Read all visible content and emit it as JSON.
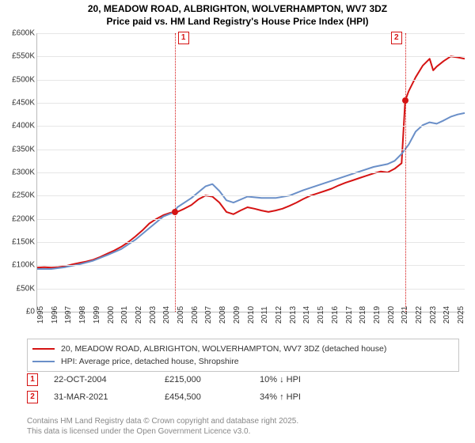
{
  "title_line1": "20, MEADOW ROAD, ALBRIGHTON, WOLVERHAMPTON, WV7 3DZ",
  "title_line2": "Price paid vs. HM Land Registry's House Price Index (HPI)",
  "chart": {
    "type": "line",
    "background_color": "#ffffff",
    "grid_color": "#e6e6e6",
    "axis_color": "#bbbbbb",
    "label_fontsize": 10,
    "x_years": [
      1995,
      1996,
      1997,
      1998,
      1999,
      2000,
      2001,
      2002,
      2003,
      2004,
      2005,
      2006,
      2007,
      2008,
      2009,
      2010,
      2011,
      2012,
      2013,
      2014,
      2015,
      2016,
      2017,
      2018,
      2019,
      2020,
      2021,
      2022,
      2023,
      2024,
      2025
    ],
    "xlim": [
      1995,
      2025.5
    ],
    "ylim": [
      0,
      600000
    ],
    "ytick_step": 50000,
    "ytick_labels": [
      "£0",
      "£50K",
      "£100K",
      "£150K",
      "£200K",
      "£250K",
      "£300K",
      "£350K",
      "£400K",
      "£450K",
      "£500K",
      "£550K",
      "£600K"
    ],
    "series": [
      {
        "name": "property",
        "color": "#d51313",
        "width": 2,
        "legend": "20, MEADOW ROAD, ALBRIGHTON, WOLVERHAMPTON, WV7 3DZ (detached house)",
        "points": [
          [
            1995,
            95000
          ],
          [
            1995.5,
            96000
          ],
          [
            1996,
            95000
          ],
          [
            1996.5,
            96000
          ],
          [
            1997,
            98000
          ],
          [
            1997.5,
            102000
          ],
          [
            1998,
            105000
          ],
          [
            1998.5,
            108000
          ],
          [
            1999,
            112000
          ],
          [
            1999.5,
            118000
          ],
          [
            2000,
            125000
          ],
          [
            2000.5,
            132000
          ],
          [
            2001,
            140000
          ],
          [
            2001.5,
            150000
          ],
          [
            2002,
            162000
          ],
          [
            2002.5,
            175000
          ],
          [
            2003,
            190000
          ],
          [
            2003.5,
            200000
          ],
          [
            2004,
            208000
          ],
          [
            2004.5,
            213000
          ],
          [
            2004.81,
            215000
          ],
          [
            2005,
            215000
          ],
          [
            2005.5,
            222000
          ],
          [
            2006,
            230000
          ],
          [
            2006.5,
            242000
          ],
          [
            2007,
            250000
          ],
          [
            2007.5,
            248000
          ],
          [
            2008,
            235000
          ],
          [
            2008.5,
            215000
          ],
          [
            2009,
            210000
          ],
          [
            2009.5,
            218000
          ],
          [
            2010,
            225000
          ],
          [
            2010.5,
            222000
          ],
          [
            2011,
            218000
          ],
          [
            2011.5,
            215000
          ],
          [
            2012,
            218000
          ],
          [
            2012.5,
            222000
          ],
          [
            2013,
            228000
          ],
          [
            2013.5,
            235000
          ],
          [
            2014,
            243000
          ],
          [
            2014.5,
            250000
          ],
          [
            2015,
            255000
          ],
          [
            2015.5,
            260000
          ],
          [
            2016,
            265000
          ],
          [
            2016.5,
            272000
          ],
          [
            2017,
            278000
          ],
          [
            2017.5,
            283000
          ],
          [
            2018,
            288000
          ],
          [
            2018.5,
            293000
          ],
          [
            2019,
            298000
          ],
          [
            2019.5,
            302000
          ],
          [
            2020,
            300000
          ],
          [
            2020.5,
            308000
          ],
          [
            2021,
            320000
          ],
          [
            2021.25,
            454500
          ],
          [
            2021.5,
            475000
          ],
          [
            2022,
            505000
          ],
          [
            2022.5,
            530000
          ],
          [
            2023,
            545000
          ],
          [
            2023.25,
            520000
          ],
          [
            2023.5,
            528000
          ],
          [
            2024,
            540000
          ],
          [
            2024.5,
            550000
          ],
          [
            2025,
            548000
          ],
          [
            2025.5,
            545000
          ]
        ]
      },
      {
        "name": "hpi",
        "color": "#6a8fc8",
        "width": 2,
        "legend": "HPI: Average price, detached house, Shropshire",
        "points": [
          [
            1995,
            92000
          ],
          [
            1996,
            92000
          ],
          [
            1997,
            96000
          ],
          [
            1998,
            102000
          ],
          [
            1999,
            110000
          ],
          [
            2000,
            122000
          ],
          [
            2001,
            135000
          ],
          [
            2002,
            155000
          ],
          [
            2003,
            180000
          ],
          [
            2004,
            205000
          ],
          [
            2004.81,
            215000
          ],
          [
            2005,
            225000
          ],
          [
            2006,
            245000
          ],
          [
            2007,
            270000
          ],
          [
            2007.5,
            275000
          ],
          [
            2008,
            260000
          ],
          [
            2008.5,
            240000
          ],
          [
            2009,
            235000
          ],
          [
            2010,
            248000
          ],
          [
            2011,
            245000
          ],
          [
            2012,
            245000
          ],
          [
            2013,
            250000
          ],
          [
            2014,
            262000
          ],
          [
            2015,
            272000
          ],
          [
            2016,
            282000
          ],
          [
            2017,
            292000
          ],
          [
            2018,
            302000
          ],
          [
            2019,
            312000
          ],
          [
            2020,
            318000
          ],
          [
            2020.5,
            325000
          ],
          [
            2021,
            340000
          ],
          [
            2021.5,
            360000
          ],
          [
            2022,
            388000
          ],
          [
            2022.5,
            402000
          ],
          [
            2023,
            408000
          ],
          [
            2023.5,
            405000
          ],
          [
            2024,
            412000
          ],
          [
            2024.5,
            420000
          ],
          [
            2025,
            425000
          ],
          [
            2025.5,
            428000
          ]
        ]
      }
    ],
    "sale_markers": [
      {
        "n": "1",
        "year": 2004.81,
        "value": 215000,
        "color": "#d51313"
      },
      {
        "n": "2",
        "year": 2021.25,
        "value": 454500,
        "color": "#d51313"
      }
    ]
  },
  "legend": {
    "items": [
      {
        "color": "#d51313",
        "label_key": "chart.series.0.legend"
      },
      {
        "color": "#6a8fc8",
        "label_key": "chart.series.1.legend"
      }
    ]
  },
  "sales": [
    {
      "n": "1",
      "color": "#d51313",
      "date": "22-OCT-2004",
      "price": "£215,000",
      "delta": "10% ↓ HPI"
    },
    {
      "n": "2",
      "color": "#d51313",
      "date": "31-MAR-2021",
      "price": "£454,500",
      "delta": "34% ↑ HPI"
    }
  ],
  "footnote_line1": "Contains HM Land Registry data © Crown copyright and database right 2025.",
  "footnote_line2": "This data is licensed under the Open Government Licence v3.0."
}
